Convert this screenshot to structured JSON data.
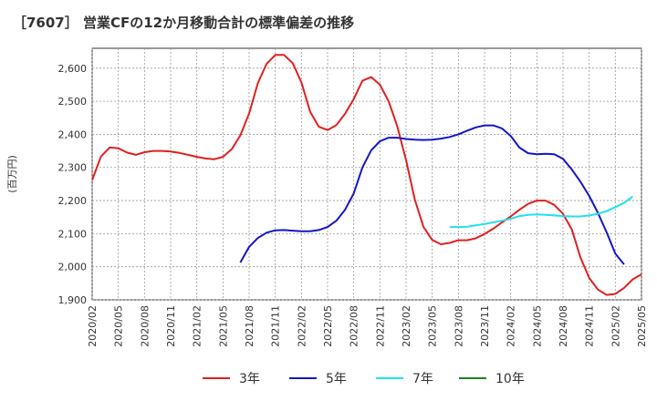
{
  "title": "［7607］ 営業CFの12か月移動合計の標準偏差の推移",
  "chart_data": {
    "type": "line",
    "ylabel": "(百万円)",
    "ylim": [
      1900,
      2660
    ],
    "yticks": [
      1900,
      2000,
      2100,
      2200,
      2300,
      2400,
      2500,
      2600
    ],
    "ytick_labels": [
      "1,900",
      "2,000",
      "2,100",
      "2,200",
      "2,300",
      "2,400",
      "2,500",
      "2,600"
    ],
    "xticks": [
      "2020/02",
      "2020/05",
      "2020/08",
      "2020/11",
      "2021/02",
      "2021/05",
      "2021/08",
      "2021/11",
      "2022/02",
      "2022/05",
      "2022/08",
      "2022/11",
      "2023/02",
      "2023/05",
      "2023/08",
      "2023/11",
      "2024/02",
      "2024/05",
      "2024/08",
      "2024/11",
      "2025/02",
      "2025/05"
    ],
    "grid": true,
    "legend_position": "bottom",
    "series": [
      {
        "name": "3年",
        "color": "#e02020",
        "start": "2020/02",
        "values": [
          2262,
          2333,
          2360,
          2358,
          2345,
          2338,
          2346,
          2350,
          2350,
          2348,
          2344,
          2338,
          2332,
          2327,
          2325,
          2332,
          2355,
          2397,
          2463,
          2555,
          2613,
          2640,
          2640,
          2615,
          2557,
          2468,
          2423,
          2413,
          2428,
          2462,
          2507,
          2562,
          2573,
          2550,
          2500,
          2424,
          2322,
          2203,
          2120,
          2081,
          2068,
          2072,
          2080,
          2080,
          2086,
          2099,
          2115,
          2134,
          2152,
          2172,
          2190,
          2200,
          2200,
          2187,
          2160,
          2113,
          2028,
          1966,
          1931,
          1915,
          1918,
          1936,
          1962,
          1977
        ]
      },
      {
        "name": "5年",
        "color": "#1515c8",
        "start": "2021/07",
        "values": [
          2013,
          2060,
          2087,
          2103,
          2110,
          2111,
          2109,
          2107,
          2107,
          2111,
          2120,
          2139,
          2172,
          2222,
          2300,
          2352,
          2379,
          2390,
          2390,
          2386,
          2384,
          2383,
          2384,
          2387,
          2392,
          2400,
          2411,
          2421,
          2427,
          2427,
          2418,
          2395,
          2360,
          2343,
          2340,
          2341,
          2340,
          2326,
          2294,
          2257,
          2214,
          2163,
          2104,
          2040,
          2007
        ]
      },
      {
        "name": "7年",
        "color": "#20e0f0",
        "start": "2023/07",
        "values": [
          2120,
          2120,
          2121,
          2125,
          2129,
          2134,
          2139,
          2145,
          2153,
          2157,
          2158,
          2157,
          2155,
          2153,
          2152,
          2152,
          2155,
          2160,
          2168,
          2180,
          2193,
          2212
        ]
      },
      {
        "name": "10年",
        "color": "#208020",
        "start": "2025/02",
        "values": []
      }
    ]
  }
}
